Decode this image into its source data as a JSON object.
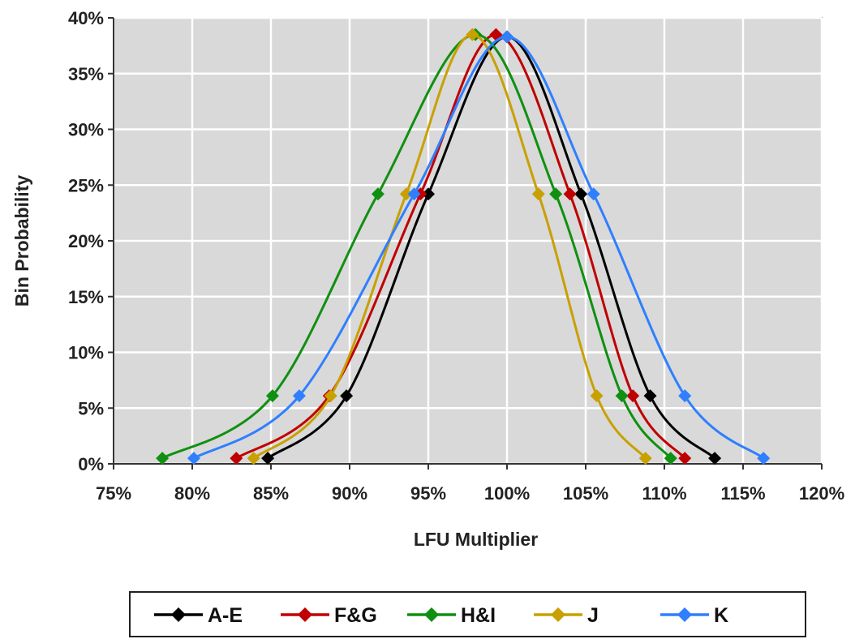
{
  "chart_data": {
    "type": "line",
    "title": "",
    "xlabel": "LFU Multiplier",
    "ylabel": "Bin Probability",
    "xlim": [
      0.75,
      1.2
    ],
    "ylim": [
      0,
      0.4
    ],
    "x_ticks": [
      0.75,
      0.8,
      0.85,
      0.9,
      0.95,
      1.0,
      1.05,
      1.1,
      1.15,
      1.2
    ],
    "x_tick_labels": [
      "75%",
      "80%",
      "85%",
      "90%",
      "95%",
      "100%",
      "105%",
      "110%",
      "115%",
      "120%"
    ],
    "y_ticks": [
      0,
      0.05,
      0.1,
      0.15,
      0.2,
      0.25,
      0.3,
      0.35,
      0.4
    ],
    "y_tick_labels": [
      "0%",
      "5%",
      "10%",
      "15%",
      "20%",
      "25%",
      "30%",
      "35%",
      "40%"
    ],
    "grid": true,
    "plot_background": "#d9d9d9",
    "legend_position": "bottom",
    "series": [
      {
        "name": "A-E",
        "color": "#000000",
        "x": [
          0.848,
          0.898,
          0.95,
          1.0,
          1.047,
          1.091,
          1.132
        ],
        "y": [
          0.005,
          0.061,
          0.242,
          0.383,
          0.242,
          0.061,
          0.005
        ]
      },
      {
        "name": "F&G",
        "color": "#c00000",
        "x": [
          0.828,
          0.887,
          0.945,
          0.993,
          1.04,
          1.08,
          1.113
        ],
        "y": [
          0.005,
          0.061,
          0.242,
          0.385,
          0.242,
          0.061,
          0.005
        ]
      },
      {
        "name": "H&I",
        "color": "#109010",
        "x": [
          0.781,
          0.851,
          0.918,
          0.98,
          1.031,
          1.073,
          1.104
        ],
        "y": [
          0.005,
          0.061,
          0.242,
          0.385,
          0.242,
          0.061,
          0.005
        ]
      },
      {
        "name": "J",
        "color": "#c8a000",
        "x": [
          0.839,
          0.888,
          0.936,
          0.978,
          1.02,
          1.057,
          1.088
        ],
        "y": [
          0.005,
          0.061,
          0.242,
          0.385,
          0.242,
          0.061,
          0.005
        ]
      },
      {
        "name": "K",
        "color": "#2f7fff",
        "x": [
          0.801,
          0.868,
          0.941,
          1.0,
          1.055,
          1.113,
          1.163
        ],
        "y": [
          0.005,
          0.061,
          0.242,
          0.383,
          0.242,
          0.061,
          0.005
        ]
      }
    ]
  }
}
